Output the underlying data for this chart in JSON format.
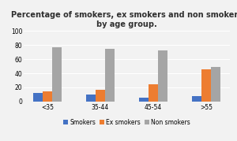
{
  "title": "Percentage of smokers, ex smokers and non smokers\nby age group.",
  "categories": [
    "<35",
    "35-44",
    "45-54",
    ">55"
  ],
  "series": {
    "Smokers": [
      12,
      10,
      6,
      8
    ],
    "Ex smokers": [
      14,
      17,
      25,
      46
    ],
    "Non smokers": [
      77,
      75,
      72,
      49
    ]
  },
  "colors": {
    "Smokers": "#4472C4",
    "Ex smokers": "#ED7D31",
    "Non smokers": "#A5A5A5"
  },
  "ylim": [
    0,
    100
  ],
  "yticks": [
    0,
    20,
    40,
    60,
    80,
    100
  ],
  "legend_labels": [
    "Smokers",
    "Ex smokers",
    "Non smokers"
  ],
  "bar_width": 0.18,
  "title_fontsize": 7.0,
  "tick_fontsize": 5.5,
  "legend_fontsize": 5.5,
  "background_color": "#f2f2f2",
  "plot_background": "#f2f2f2",
  "grid_color": "#ffffff"
}
